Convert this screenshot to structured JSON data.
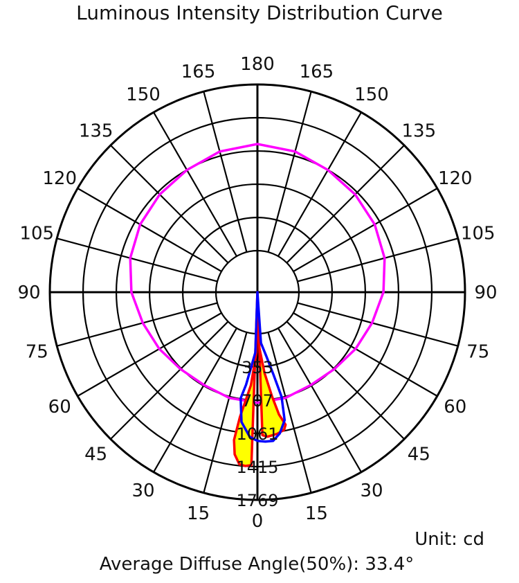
{
  "title": "Luminous Intensity Distribution Curve",
  "unit_label": "Unit: cd",
  "footer": {
    "label": "Average Diffuse Angle(50%):",
    "value": "33.4°"
  },
  "chart_data": {
    "type": "polar",
    "title": "Luminous Intensity Distribution Curve",
    "unit": "cd",
    "radial_max": 1769,
    "radial_ticks": [
      353,
      707,
      1061,
      1415,
      1769
    ],
    "angle_step": 15,
    "angle_labels_left": [
      "0",
      "15",
      "30",
      "45",
      "60",
      "75",
      "90",
      "105",
      "120",
      "135",
      "150",
      "165",
      "180"
    ],
    "angle_labels_right": [
      "15",
      "30",
      "45",
      "60",
      "75",
      "90",
      "105",
      "120",
      "135",
      "150",
      "165"
    ],
    "series": [
      {
        "color": "#ff00ff",
        "fill": null,
        "points": [
          [
            0,
            735
          ],
          [
            15,
            722
          ],
          [
            30,
            698
          ],
          [
            45,
            716
          ],
          [
            60,
            765
          ],
          [
            75,
            822
          ],
          [
            90,
            900
          ],
          [
            105,
            960
          ],
          [
            120,
            1000
          ],
          [
            135,
            1030
          ],
          [
            150,
            1060
          ],
          [
            165,
            1108
          ],
          [
            180,
            1135
          ],
          [
            -165,
            1108
          ],
          [
            -150,
            1060
          ],
          [
            -135,
            1030
          ],
          [
            -120,
            1000
          ],
          [
            -105,
            960
          ],
          [
            -90,
            900
          ],
          [
            -75,
            822
          ],
          [
            -60,
            765
          ],
          [
            -45,
            716
          ],
          [
            -30,
            698
          ],
          [
            -15,
            722
          ]
        ]
      },
      {
        "color": "#ff0000",
        "fill": "#ffff00",
        "points": [
          [
            0,
            0
          ],
          [
            -2,
            1400
          ],
          [
            -4,
            1412
          ],
          [
            -6,
            1400
          ],
          [
            -8,
            1300
          ],
          [
            -9,
            1150
          ],
          [
            -8,
            900
          ],
          [
            -4,
            550
          ],
          [
            -1,
            200
          ],
          [
            0,
            0
          ],
          [
            2,
            150
          ],
          [
            5,
            420
          ],
          [
            8,
            680
          ],
          [
            10,
            880
          ],
          [
            12,
            1000
          ],
          [
            11,
            1050
          ],
          [
            8,
            1080
          ],
          [
            4,
            1100
          ],
          [
            2,
            1080
          ],
          [
            0,
            0
          ]
        ]
      },
      {
        "color": "#0000ff",
        "fill": null,
        "points": [
          [
            0,
            0
          ],
          [
            -2,
            200
          ],
          [
            -7,
            550
          ],
          [
            -9,
            700
          ],
          [
            -7,
            950
          ],
          [
            -3,
            1100
          ],
          [
            0,
            1140
          ],
          [
            3,
            1150
          ],
          [
            6,
            1150
          ],
          [
            9,
            1080
          ],
          [
            12,
            950
          ],
          [
            13,
            700
          ],
          [
            11,
            450
          ],
          [
            8,
            250
          ],
          [
            4,
            100
          ],
          [
            0,
            0
          ]
        ]
      }
    ]
  }
}
